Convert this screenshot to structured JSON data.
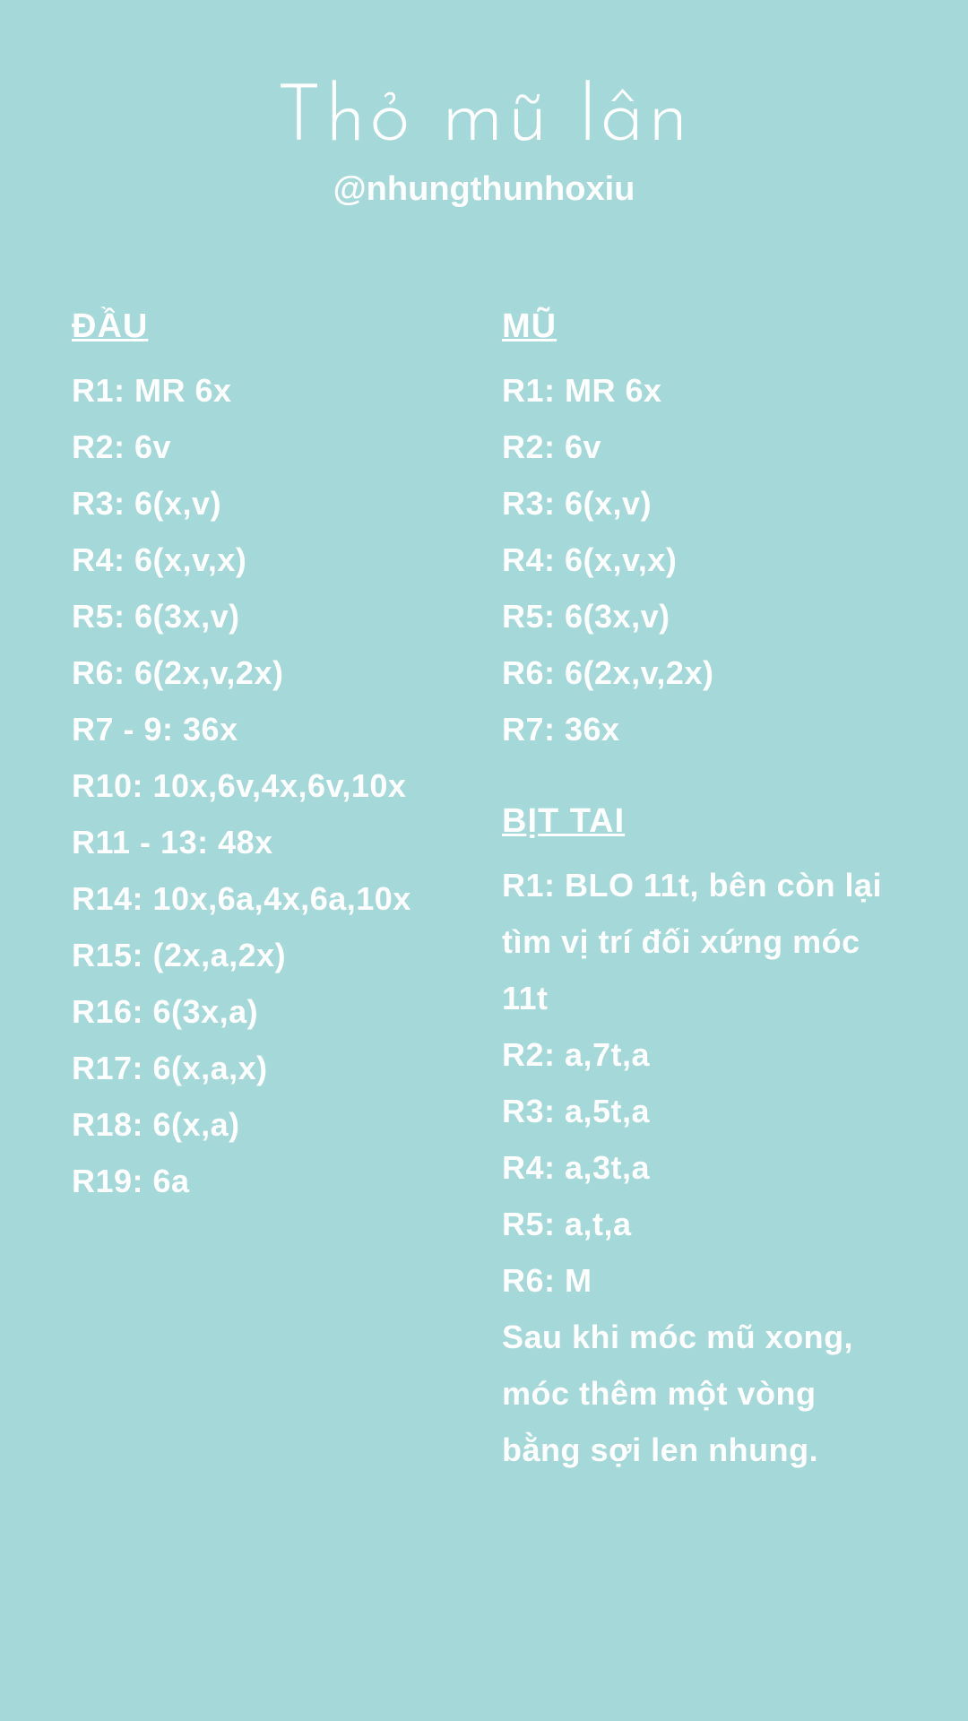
{
  "background_color": "#a5d8d8",
  "text_color": "#ffffff",
  "title": "Thỏ mũ lân",
  "handle": "@nhungthunhoxiu",
  "left": {
    "heading": "ĐẦU",
    "rows": [
      "R1: MR 6x",
      "R2: 6v",
      "R3: 6(x,v)",
      "R4: 6(x,v,x)",
      "R5: 6(3x,v)",
      "R6: 6(2x,v,2x)",
      "R7 - 9: 36x",
      "R10: 10x,6v,4x,6v,10x",
      "R11 - 13: 48x",
      "R14: 10x,6a,4x,6a,10x",
      "R15: (2x,a,2x)",
      "R16: 6(3x,a)",
      "R17: 6(x,a,x)",
      "R18: 6(x,a)",
      "R19: 6a"
    ]
  },
  "right_top": {
    "heading": "MŨ",
    "rows": [
      "R1: MR 6x",
      "R2: 6v",
      "R3: 6(x,v)",
      "R4: 6(x,v,x)",
      "R5: 6(3x,v)",
      "R6: 6(2x,v,2x)",
      "R7: 36x"
    ]
  },
  "right_bottom": {
    "heading": "BỊT TAI",
    "rows": [
      "R1: BLO 11t, bên còn lại tìm vị trí đối xứng móc 11t",
      "R2: a,7t,a",
      "R3: a,5t,a",
      "R4: a,3t,a",
      "R5: a,t,a",
      "R6: M"
    ],
    "note": "Sau khi móc mũ xong, móc thêm một vòng bằng sợi len nhung."
  }
}
